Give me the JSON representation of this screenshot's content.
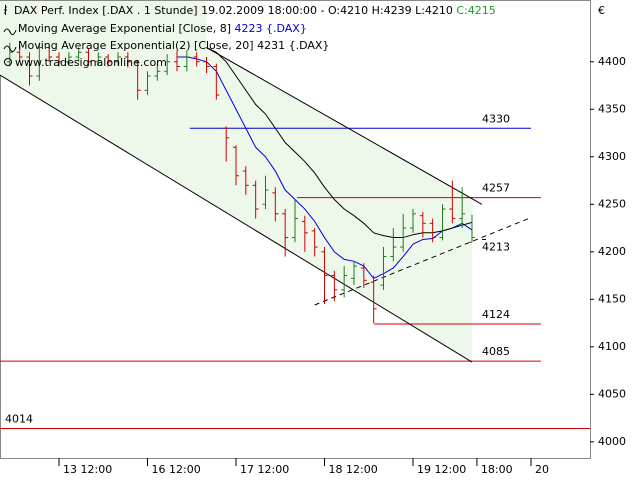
{
  "chart_data": {
    "type": "ohlc",
    "title": "DAX Perf. Index [.DAX . 1 Stunde] 19.02.2009 18:00:00 - O:4210 H:4239 L:4210",
    "last_close_label": "C:4215",
    "currency": "€",
    "watermark": "www.tradesignalonline.com",
    "up_color": "#1f7a1f",
    "down_color": "#cc0000",
    "x": [
      1,
      2,
      3,
      4,
      5,
      6,
      7,
      8,
      9,
      10,
      11,
      12,
      13,
      14,
      15,
      16,
      17,
      18,
      19,
      20,
      21,
      22,
      23,
      24,
      25,
      26,
      27,
      28,
      29,
      30,
      31,
      32,
      33,
      34,
      35,
      36,
      37,
      38,
      39,
      40,
      41,
      42,
      43,
      44,
      45,
      46,
      47,
      48
    ],
    "open": [
      4400,
      4410,
      4405,
      4385,
      4415,
      4405,
      4400,
      4405,
      4410,
      4400,
      4405,
      4400,
      4405,
      4400,
      4370,
      4385,
      4390,
      4400,
      4395,
      4405,
      4400,
      4395,
      4330,
      4310,
      4285,
      4270,
      4250,
      4262,
      4240,
      4215,
      4232,
      4222,
      4200,
      4175,
      4160,
      4172,
      4183,
      4168,
      4165,
      4195,
      4205,
      4225,
      4238,
      4230,
      4215,
      4245,
      4235,
      4210
    ],
    "high": [
      4420,
      4418,
      4410,
      4420,
      4418,
      4410,
      4410,
      4415,
      4414,
      4410,
      4408,
      4410,
      4410,
      4402,
      4390,
      4398,
      4408,
      4412,
      4412,
      4410,
      4405,
      4398,
      4332,
      4312,
      4290,
      4275,
      4280,
      4268,
      4245,
      4255,
      4238,
      4225,
      4205,
      4180,
      4185,
      4190,
      4188,
      4175,
      4205,
      4225,
      4240,
      4245,
      4242,
      4235,
      4250,
      4275,
      4268,
      4239
    ],
    "low": [
      4395,
      4400,
      4375,
      4380,
      4400,
      4395,
      4396,
      4400,
      4396,
      4396,
      4395,
      4396,
      4394,
      4360,
      4365,
      4380,
      4386,
      4390,
      4390,
      4395,
      4388,
      4360,
      4295,
      4270,
      4260,
      4235,
      4245,
      4232,
      4195,
      4210,
      4200,
      4195,
      4145,
      4148,
      4152,
      4165,
      4162,
      4125,
      4160,
      4190,
      4200,
      4220,
      4215,
      4210,
      4212,
      4230,
      4225,
      4210
    ],
    "close": [
      4410,
      4405,
      4385,
      4415,
      4405,
      4400,
      4405,
      4410,
      4400,
      4405,
      4400,
      4405,
      4400,
      4370,
      4385,
      4390,
      4400,
      4395,
      4405,
      4400,
      4395,
      4365,
      4320,
      4280,
      4270,
      4245,
      4265,
      4240,
      4215,
      4235,
      4220,
      4205,
      4175,
      4160,
      4175,
      4185,
      4170,
      4140,
      4195,
      4205,
      4225,
      4240,
      4230,
      4215,
      4245,
      4235,
      4240,
      4215
    ],
    "series": [
      {
        "name": "Moving Average Exponential [Close, 8]",
        "last_label": "4223 {.DAX}",
        "color": "#0000dd",
        "values": [
          null,
          null,
          null,
          null,
          null,
          null,
          null,
          null,
          null,
          null,
          null,
          null,
          null,
          null,
          null,
          null,
          null,
          4405,
          4405,
          4403,
          4400,
          4390,
          4370,
          4350,
          4330,
          4310,
          4300,
          4285,
          4265,
          4255,
          4245,
          4232,
          4215,
          4200,
          4192,
          4190,
          4185,
          4172,
          4177,
          4183,
          4195,
          4208,
          4213,
          4214,
          4222,
          4225,
          4230,
          4223
        ]
      },
      {
        "name": "Moving Average Exponential(2) [Close, 20]",
        "last_label": "4231 {.DAX}",
        "color": "#000000",
        "values": [
          null,
          null,
          null,
          null,
          null,
          null,
          null,
          null,
          null,
          null,
          null,
          null,
          null,
          null,
          null,
          null,
          null,
          null,
          null,
          null,
          4415,
          4410,
          4400,
          4385,
          4370,
          4355,
          4345,
          4330,
          4315,
          4305,
          4295,
          4283,
          4268,
          4255,
          4245,
          4238,
          4230,
          4220,
          4217,
          4215,
          4215,
          4218,
          4220,
          4220,
          4222,
          4225,
          4228,
          4231
        ]
      }
    ],
    "trend_lines": [
      {
        "points": [
          [
            21,
            4415
          ],
          [
            49,
            4250
          ]
        ],
        "color": "#000000",
        "style": "solid"
      },
      {
        "points": [
          [
            0,
            4386
          ],
          [
            48,
            4084
          ]
        ],
        "color": "#000000",
        "style": "solid"
      },
      {
        "points": [
          [
            32,
            4144
          ],
          [
            54,
            4236
          ]
        ],
        "color": "#000000",
        "style": "dashed"
      }
    ],
    "levels": [
      {
        "value": 4330,
        "from": 19.3,
        "to": 54,
        "color": "#0000cc",
        "label_side": "right"
      },
      {
        "value": 4257,
        "from": 30.2,
        "to": 55,
        "color": "#cc0000",
        "label_side": "right"
      },
      {
        "value": 4124,
        "from": 38,
        "to": 55,
        "color": "#cc0000",
        "label_side": "right"
      },
      {
        "value": 4085,
        "from": 0,
        "to": 55,
        "color": "#cc0000",
        "label_side": "right"
      },
      {
        "value": 4014,
        "from": 0,
        "to": 60,
        "color": "#cc0000",
        "label_side": "left"
      }
    ],
    "last_price": 4213,
    "xlim": [
      0,
      60
    ],
    "xticks": [
      {
        "value": 6,
        "label": "13 12:00"
      },
      {
        "value": 15,
        "label": "16 12:00"
      },
      {
        "value": 24,
        "label": "17 12:00"
      },
      {
        "value": 33,
        "label": "18 12:00"
      },
      {
        "value": 42,
        "label": "19 12:00"
      },
      {
        "value": 48.5,
        "label": "18:00"
      },
      {
        "value": 54,
        "label": "20"
      }
    ],
    "ylim": [
      3983,
      4465
    ],
    "yticks": [
      4000,
      4050,
      4100,
      4150,
      4200,
      4250,
      4300,
      4350,
      4400
    ]
  }
}
